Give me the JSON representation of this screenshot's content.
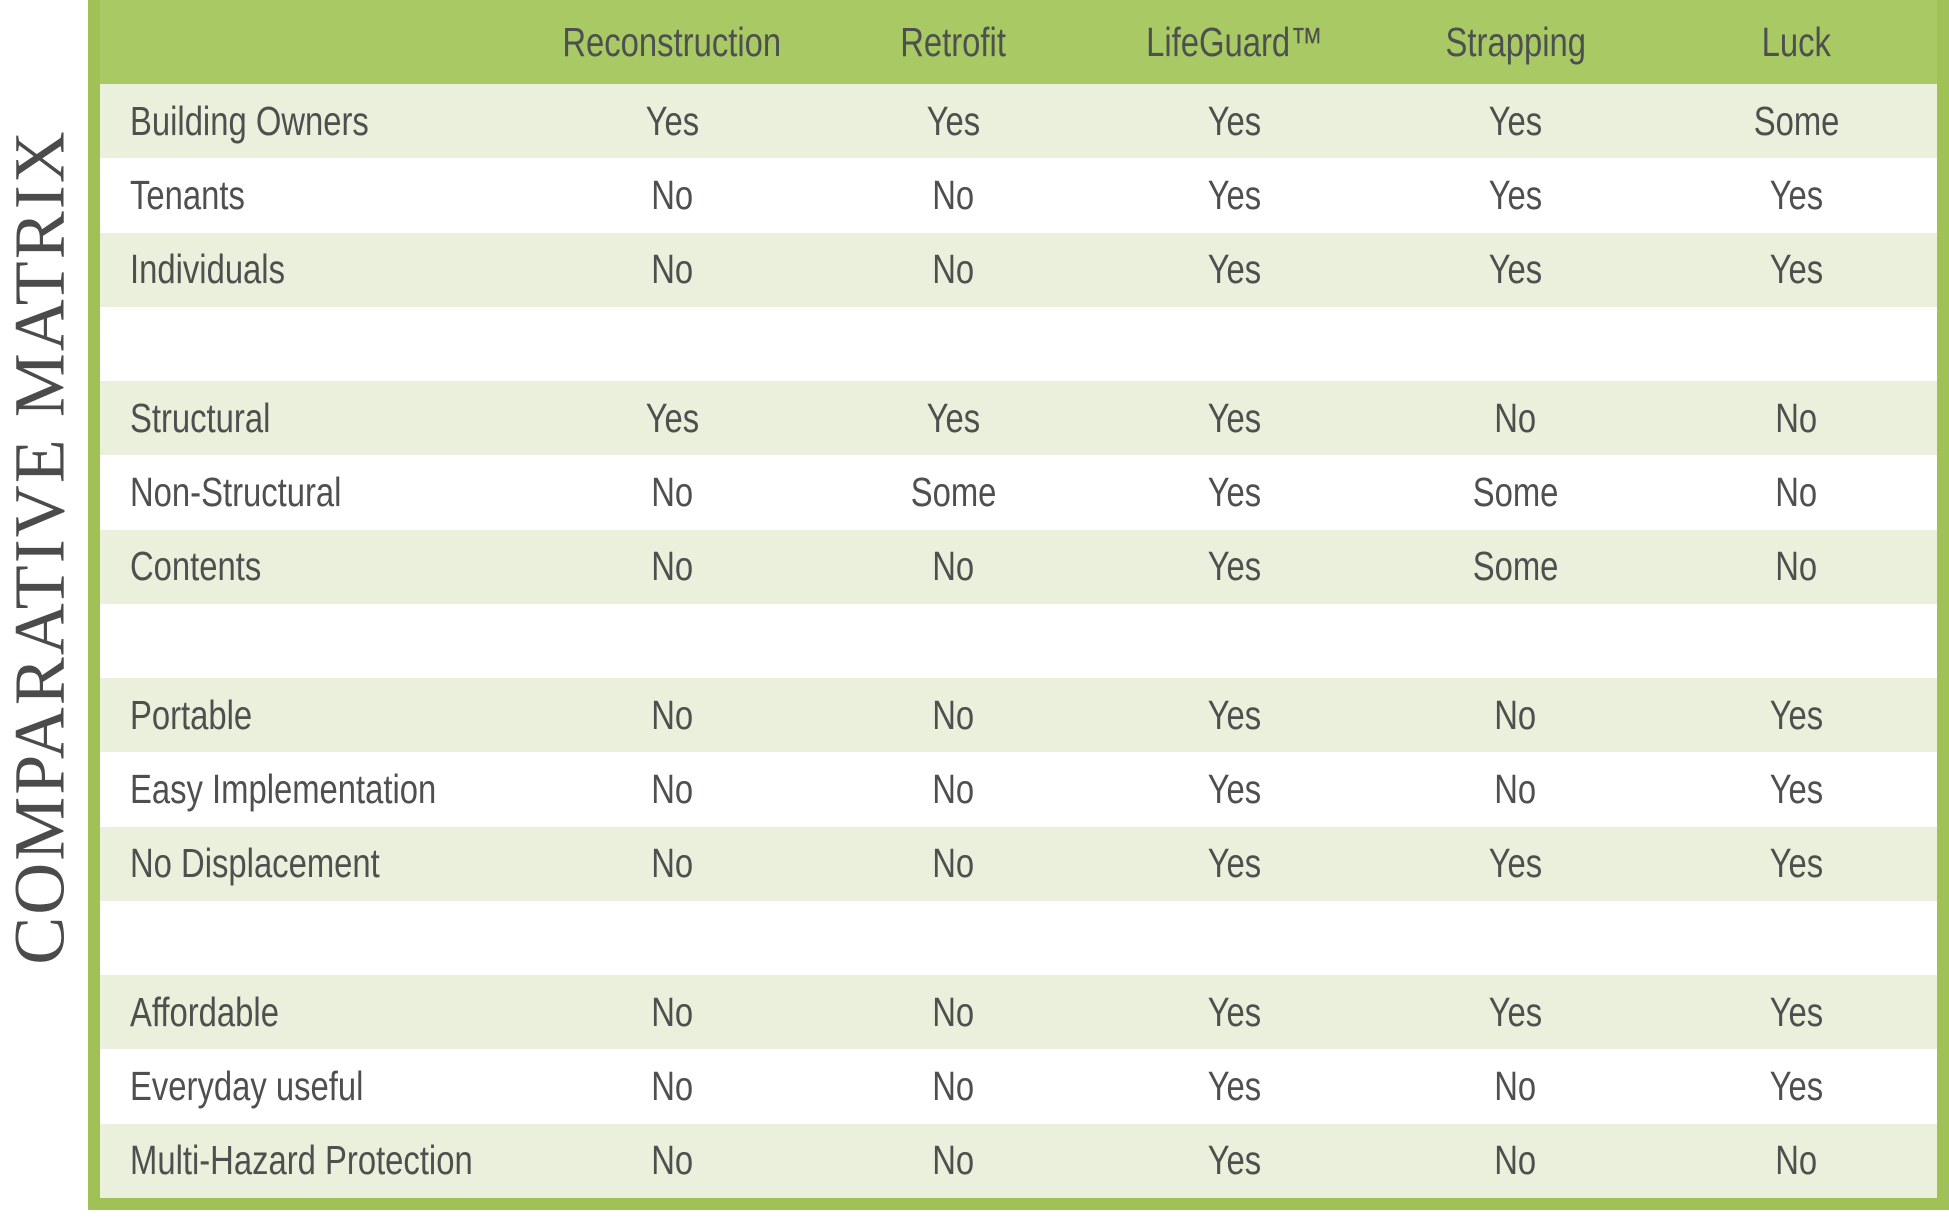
{
  "title": "COMPARATIVE MATRIX",
  "table": {
    "columns": [
      "Reconstruction",
      "Retrofit",
      "LifeGuard™",
      "Strapping",
      "Luck"
    ],
    "rows": [
      {
        "label": "Building Owners",
        "values": [
          "Yes",
          "Yes",
          "Yes",
          "Yes",
          "Some"
        ]
      },
      {
        "label": "Tenants",
        "values": [
          "No",
          "No",
          "Yes",
          "Yes",
          "Yes"
        ]
      },
      {
        "label": "Individuals",
        "values": [
          "No",
          "No",
          "Yes",
          "Yes",
          "Yes"
        ]
      },
      {
        "label": "",
        "spacer": true,
        "values": [
          "",
          "",
          "",
          "",
          ""
        ]
      },
      {
        "label": "Structural",
        "values": [
          "Yes",
          "Yes",
          "Yes",
          "No",
          "No"
        ]
      },
      {
        "label": "Non-Structural",
        "values": [
          "No",
          "Some",
          "Yes",
          "Some",
          "No"
        ]
      },
      {
        "label": "Contents",
        "values": [
          "No",
          "No",
          "Yes",
          "Some",
          "No"
        ]
      },
      {
        "label": "",
        "spacer": true,
        "values": [
          "",
          "",
          "",
          "",
          ""
        ]
      },
      {
        "label": "Portable",
        "values": [
          "No",
          "No",
          "Yes",
          "No",
          "Yes"
        ]
      },
      {
        "label": "Easy Implementation",
        "values": [
          "No",
          "No",
          "Yes",
          "No",
          "Yes"
        ]
      },
      {
        "label": "No Displacement",
        "values": [
          "No",
          "No",
          "Yes",
          "Yes",
          "Yes"
        ]
      },
      {
        "label": "",
        "spacer": true,
        "values": [
          "",
          "",
          "",
          "",
          ""
        ]
      },
      {
        "label": "Affordable",
        "values": [
          "No",
          "No",
          "Yes",
          "Yes",
          "Yes"
        ]
      },
      {
        "label": "Everyday useful",
        "values": [
          "No",
          "No",
          "Yes",
          "No",
          "Yes"
        ]
      },
      {
        "label": "Multi-Hazard Protection",
        "values": [
          "No",
          "No",
          "Yes",
          "No",
          "No"
        ]
      }
    ]
  },
  "colors": {
    "header_green": "#a9c964",
    "border_green": "#9fc155",
    "row_green": "#eaf0db",
    "row_white": "#ffffff",
    "text_dark": "#4d504f",
    "title_gray": "#4a4c4b"
  }
}
